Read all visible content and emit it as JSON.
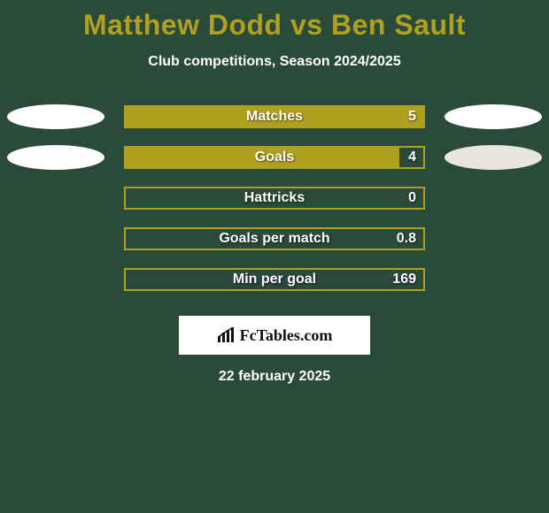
{
  "title": "Matthew Dodd vs Ben Sault",
  "subtitle": "Club competitions, Season 2024/2025",
  "colors": {
    "background": "#2a4a3a",
    "accent": "#b0a020",
    "text": "#ffffff",
    "ellipse_left": "#ffffff",
    "ellipse_right_0": "#ffffff",
    "ellipse_right_1": "#e8e6dc",
    "logo_bg": "#ffffff",
    "logo_text": "#111111"
  },
  "chart": {
    "bar_container_width": 340,
    "bar_container_height": 26,
    "bar_border_width": 2,
    "rows": [
      {
        "label": "Matches",
        "value": "5",
        "fill_pct": 100,
        "left_ellipse": true,
        "right_ellipse": true,
        "right_dim": false
      },
      {
        "label": "Goals",
        "value": "4",
        "fill_pct": 92,
        "left_ellipse": true,
        "right_ellipse": true,
        "right_dim": true
      },
      {
        "label": "Hattricks",
        "value": "0",
        "fill_pct": 0,
        "left_ellipse": false,
        "right_ellipse": false,
        "right_dim": false
      },
      {
        "label": "Goals per match",
        "value": "0.8",
        "fill_pct": 0,
        "left_ellipse": false,
        "right_ellipse": false,
        "right_dim": false
      },
      {
        "label": "Min per goal",
        "value": "169",
        "fill_pct": 0,
        "left_ellipse": false,
        "right_ellipse": false,
        "right_dim": false
      }
    ]
  },
  "logo": {
    "text": "FcTables.com"
  },
  "date": "22 february 2025",
  "typography": {
    "title_fontsize": 32,
    "subtitle_fontsize": 16,
    "row_label_fontsize": 16,
    "date_fontsize": 16,
    "logo_fontsize": 18
  }
}
